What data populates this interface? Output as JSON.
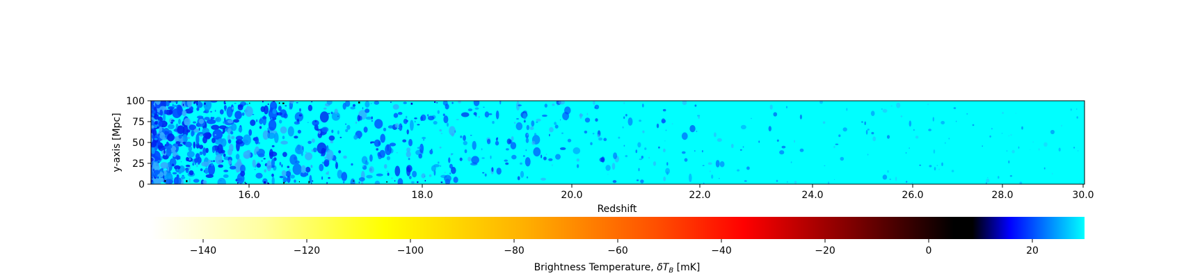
{
  "chart_data": [
    {
      "type": "heatmap",
      "title": "",
      "xlabel": "Redshift",
      "ylabel": "y-axis [Mpc]",
      "y_ticks": [
        "0",
        "25",
        "50",
        "75",
        "100"
      ],
      "y_tick_values": [
        0,
        25,
        50,
        75,
        100
      ],
      "ylim": [
        0,
        100
      ],
      "x_ticks": [
        "16.0",
        "18.0",
        "20.0",
        "22.0",
        "24.0",
        "26.0",
        "28.0",
        "30.0"
      ],
      "x_tick_values": [
        16.0,
        18.0,
        20.0,
        22.0,
        24.0,
        26.0,
        28.0,
        30.0
      ],
      "xlim": [
        14.9,
        30.0
      ],
      "background_value": 28,
      "features": "patchy negative-brightness (blue) bubbles, dense at low redshift, fading toward high redshift"
    },
    {
      "type": "colorbar",
      "label_prefix": "Brightness Temperature, ",
      "label_symbol_delta": "δ",
      "label_symbol_T": "T",
      "label_symbol_sub": "B",
      "label_suffix": " [mK]",
      "range": [
        -150,
        30
      ],
      "ticks": [
        "−140",
        "−120",
        "−100",
        "−80",
        "−60",
        "−40",
        "−20",
        "0",
        "20"
      ],
      "tick_values": [
        -140,
        -120,
        -100,
        -80,
        -60,
        -40,
        -20,
        0,
        20
      ],
      "colormap": "gist_heat_r-to-cyan",
      "colors": {
        "white": "#ffffff",
        "light_yellow": "#ffffa0",
        "yellow": "#ffff00",
        "orange": "#ffa500",
        "red": "#ff0000",
        "dark_red": "#800000",
        "black": "#000000",
        "blue": "#0000ff",
        "cyan": "#00ffff"
      }
    }
  ]
}
